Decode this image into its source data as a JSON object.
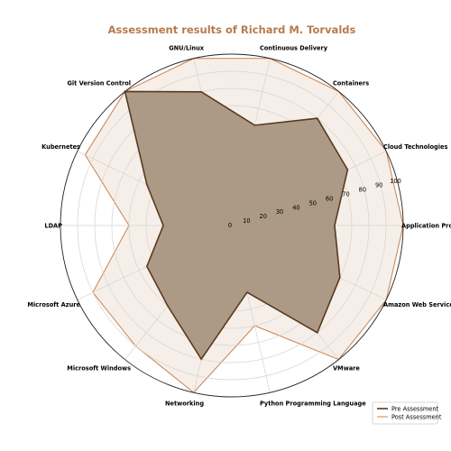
{
  "chart_data": {
    "type": "radar",
    "title": "Assessment results of Richard M. Torvalds",
    "categories": [
      "Application Programming Interfaces",
      "Cloud Technologies",
      "Containers",
      "Continuous Delivery",
      "GNU/Linux",
      "Git Version Control",
      "Kubernetes",
      "LDAP",
      "Microsoft Azure",
      "Microsoft Windows",
      "Networking",
      "Python Programming Language",
      "VMware",
      "Amazon Web Services"
    ],
    "radial_ticks": [
      0,
      10,
      20,
      30,
      40,
      50,
      60,
      70,
      80,
      90,
      100
    ],
    "rlim": [
      0,
      100
    ],
    "grid": true,
    "legend_position": "bottom-right",
    "series": [
      {
        "name": "Pre Assessment",
        "values": [
          60,
          75,
          80,
          60,
          80,
          100,
          55,
          40,
          55,
          60,
          80,
          40,
          80,
          70
        ],
        "line_color": "#5a3a1e",
        "fill_color": "#a89582"
      },
      {
        "name": "Post Assessment",
        "values": [
          100,
          100,
          100,
          100,
          100,
          100,
          95,
          60,
          90,
          90,
          100,
          60,
          100,
          100
        ],
        "line_color": "#c9804d",
        "fill_color": "#f6efe9"
      }
    ],
    "title_color": "#b87a4b"
  }
}
